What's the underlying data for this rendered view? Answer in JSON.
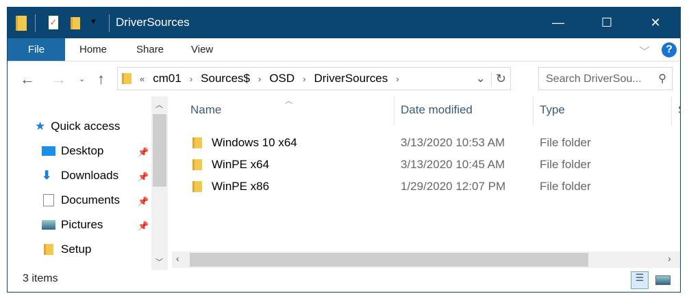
{
  "window": {
    "title": "DriverSources",
    "controls": [
      "minimize",
      "maximize",
      "close"
    ]
  },
  "ribbon": {
    "tabs": [
      "File",
      "Home",
      "Share",
      "View"
    ]
  },
  "address": {
    "overflow": "«",
    "crumbs": [
      "cm01",
      "Sources$",
      "OSD",
      "DriverSources"
    ]
  },
  "search": {
    "placeholder": "Search DriverSou..."
  },
  "nav": {
    "items": [
      {
        "label": "Quick access",
        "icon": "star-icon",
        "pinned": false
      },
      {
        "label": "Desktop",
        "icon": "desktop-icon",
        "pinned": true
      },
      {
        "label": "Downloads",
        "icon": "download-icon",
        "pinned": true
      },
      {
        "label": "Documents",
        "icon": "documents-icon",
        "pinned": true
      },
      {
        "label": "Pictures",
        "icon": "pictures-icon",
        "pinned": true
      },
      {
        "label": "Setup",
        "icon": "folder-icon",
        "pinned": false
      }
    ]
  },
  "columns": [
    "Name",
    "Date modified",
    "Type",
    "S"
  ],
  "files": [
    {
      "name": "Windows 10 x64",
      "date": "3/13/2020 10:53 AM",
      "type": "File folder"
    },
    {
      "name": "WinPE x64",
      "date": "3/13/2020 10:45 AM",
      "type": "File folder"
    },
    {
      "name": "WinPE x86",
      "date": "1/29/2020 12:07 PM",
      "type": "File folder"
    }
  ],
  "status": {
    "count": "3 items"
  },
  "colors": {
    "titlebar": "#0b4571",
    "file_tab": "#1b6aa5"
  }
}
